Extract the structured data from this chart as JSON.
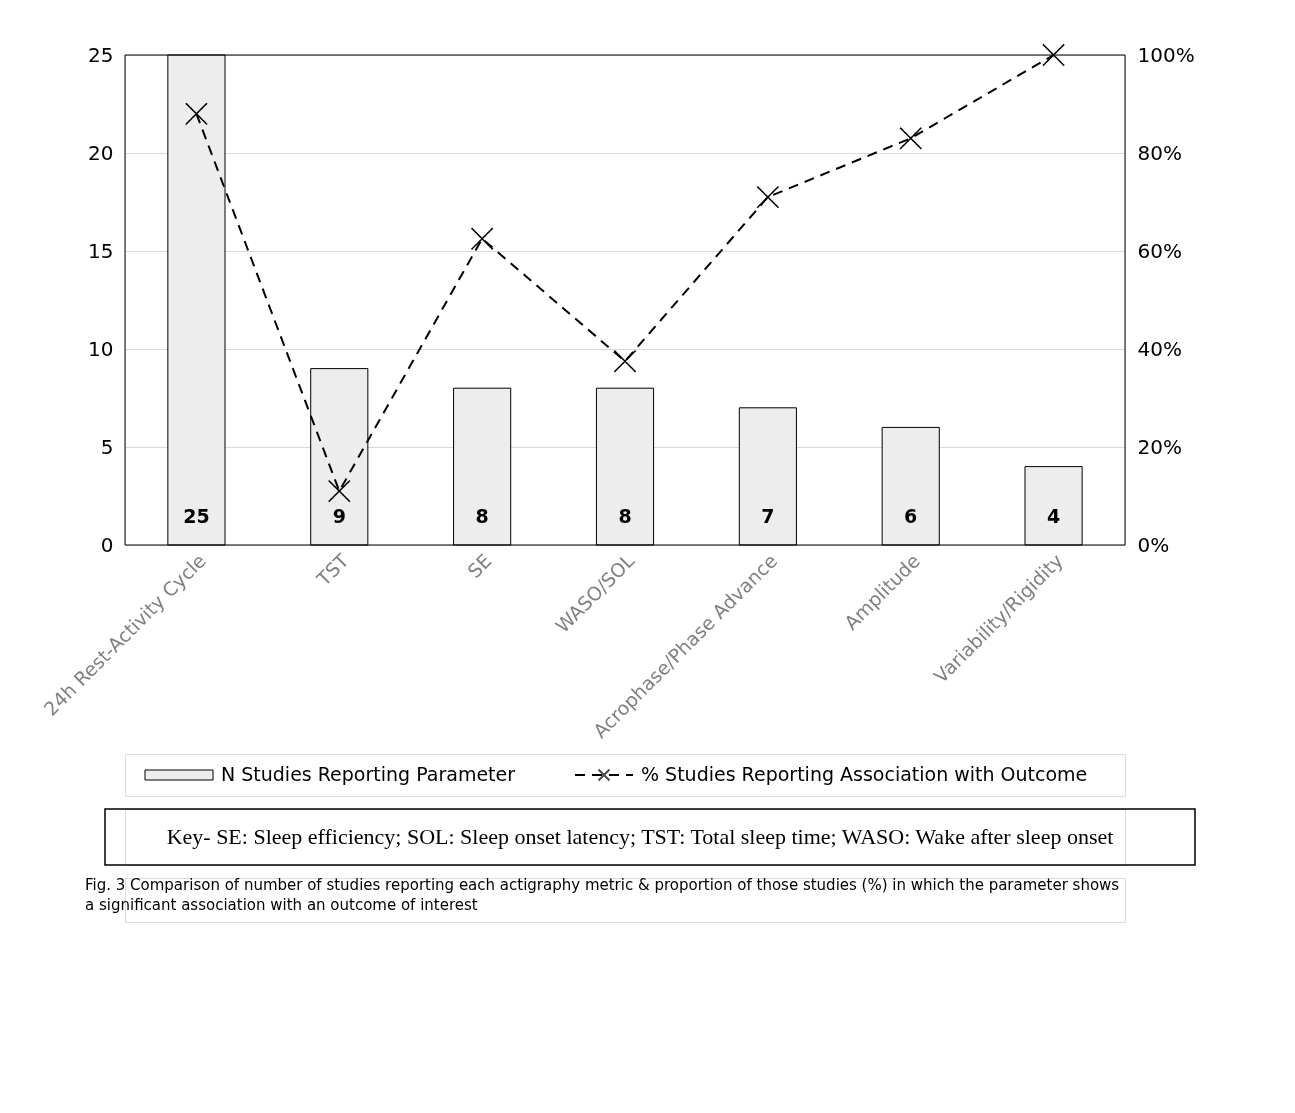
{
  "chart_data": {
    "type": "bar",
    "categories": [
      "24h Rest-Activity Cycle",
      "TST",
      "SE",
      "WASO/SOL",
      "Acrophase/Phase Advance",
      "Amplitude",
      "Variability/Rigidity"
    ],
    "series": [
      {
        "name": "N Studies Reporting Parameter",
        "type": "bar",
        "color": "#ededed",
        "values": [
          25,
          9,
          8,
          8,
          7,
          6,
          4
        ],
        "value_labels": [
          "25",
          "9",
          "8",
          "8",
          "7",
          "6",
          "4"
        ]
      },
      {
        "name": "% Studies Reporting Association with Outcome",
        "type": "line",
        "axis": "y2",
        "color": "#000000",
        "values": [
          88,
          11,
          62.5,
          37.5,
          71,
          83,
          100
        ],
        "marker": "cross",
        "line_style": "dashed"
      }
    ],
    "ylim": [
      0,
      25
    ],
    "yticks": [
      0,
      5,
      10,
      15,
      20,
      25
    ],
    "y2lim": [
      0,
      100
    ],
    "y2ticks": [
      {
        "value": 0,
        "label": "0%"
      },
      {
        "value": 20,
        "label": "20%"
      },
      {
        "value": 40,
        "label": "40%"
      },
      {
        "value": 60,
        "label": "60%"
      },
      {
        "value": 80,
        "label": "80%"
      },
      {
        "value": 100,
        "label": "100%"
      }
    ],
    "grid": "y",
    "legend": "bottom",
    "annotations": [
      "Key- SE: Sleep efficiency; SOL: Sleep onset latency; TST: Total sleep time; WASO: Wake after sleep onset",
      "Fig. 3  Comparison of number of studies reporting each actigraphy metric & proportion of those studies (%) in which the parameter shows a significant association with an outcome of interest"
    ]
  }
}
